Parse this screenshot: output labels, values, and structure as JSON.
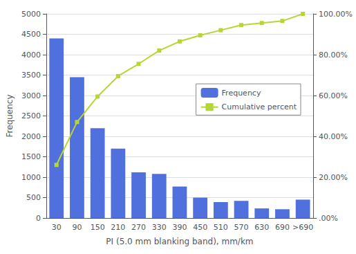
{
  "chart_data": {
    "type": "bar",
    "xlabel": "PI (5.0 mm blanking band), mm/km",
    "ylabel": "Frequency",
    "categories": [
      "30",
      "90",
      "150",
      "210",
      "270",
      "330",
      "390",
      "450",
      "510",
      "570",
      "630",
      "690",
      ">690"
    ],
    "series": [
      {
        "name": "Frequency",
        "type": "bar",
        "values": [
          4400,
          3450,
          2200,
          1700,
          1120,
          1080,
          770,
          500,
          390,
          420,
          235,
          215,
          450
        ]
      },
      {
        "name": "Cumulative percent",
        "type": "line",
        "marker": "square",
        "axis": "y2",
        "values": [
          26.0,
          47.0,
          59.5,
          69.5,
          75.5,
          82.0,
          86.5,
          89.5,
          92.0,
          94.5,
          95.5,
          96.5,
          100.0
        ]
      }
    ],
    "ylim": [
      0,
      5000
    ],
    "yticks": [
      0,
      500,
      1000,
      1500,
      2000,
      2500,
      3000,
      3500,
      4000,
      4500,
      5000
    ],
    "y2lim": [
      0,
      100
    ],
    "y2ticks": [
      {
        "value": 0,
        "label": ".00%"
      },
      {
        "value": 20,
        "label": "20.00%"
      },
      {
        "value": 40,
        "label": "40.00%"
      },
      {
        "value": 60,
        "label": "60.00%"
      },
      {
        "value": 80,
        "label": "80.00%"
      },
      {
        "value": 100,
        "label": "100.00%"
      }
    ],
    "grid": true,
    "legend": "right"
  }
}
